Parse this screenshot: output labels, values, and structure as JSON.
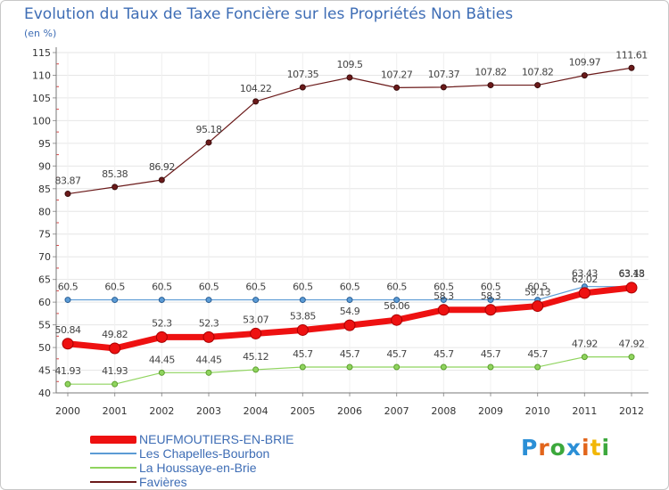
{
  "chart_data": {
    "type": "line",
    "title": "Evolution du Taux de Taxe Foncière sur les Propriétés Non Bâties",
    "ylabel": "(en %)",
    "xlabel": "",
    "ylim": [
      40,
      115
    ],
    "yticks": [
      40,
      45,
      50,
      55,
      60,
      65,
      70,
      75,
      80,
      85,
      90,
      95,
      100,
      105,
      110,
      115
    ],
    "x": [
      "2000",
      "2001",
      "2002",
      "2003",
      "2004",
      "2005",
      "2006",
      "2007",
      "2008",
      "2009",
      "2010",
      "2011",
      "2012"
    ],
    "series": [
      {
        "name": "Favières",
        "color": "#6b1a1a",
        "values": [
          83.87,
          85.38,
          86.92,
          95.18,
          104.22,
          107.35,
          109.5,
          107.27,
          107.37,
          107.82,
          107.82,
          109.97,
          111.61
        ],
        "labels": [
          "83.87",
          "85.38",
          "86.92",
          "95.18",
          "104.22",
          "107.35",
          "109.5",
          "107.27",
          "107.37",
          "107.82",
          "107.82",
          "109.97",
          "111.61"
        ]
      },
      {
        "name": "Les Chapelles-Bourbon",
        "color": "#5b9bd5",
        "values": [
          60.5,
          60.5,
          60.5,
          60.5,
          60.5,
          60.5,
          60.5,
          60.5,
          60.5,
          60.5,
          60.5,
          63.43,
          63.43
        ],
        "labels": [
          "60.5",
          "60.5",
          "60.5",
          "60.5",
          "60.5",
          "60.5",
          "60.5",
          "60.5",
          "60.5",
          "60.5",
          "60.5",
          "63.43",
          "63.43"
        ]
      },
      {
        "name": "La Houssaye-en-Brie",
        "color": "#8fd45e",
        "values": [
          41.93,
          41.93,
          44.45,
          44.45,
          45.12,
          45.7,
          45.7,
          45.7,
          45.7,
          45.7,
          45.7,
          47.92,
          47.92
        ],
        "labels": [
          "41.93",
          "41.93",
          "44.45",
          "44.45",
          "45.12",
          "45.7",
          "45.7",
          "45.7",
          "45.7",
          "45.7",
          "45.7",
          "47.92",
          "47.92"
        ]
      },
      {
        "name": "NEUFMOUTIERS-EN-BRIE",
        "color": "#ee1111",
        "values": [
          50.84,
          49.82,
          52.3,
          52.3,
          53.07,
          53.85,
          54.9,
          56.06,
          58.3,
          58.3,
          59.13,
          62.02,
          63.18
        ],
        "labels": [
          "50.84",
          "49.82",
          "52.3",
          "52.3",
          "53.07",
          "53.85",
          "54.9",
          "56.06",
          "58.3",
          "58.3",
          "59.13",
          "62.02",
          "63.18"
        ]
      }
    ],
    "legend": [
      {
        "name": "NEUFMOUTIERS-EN-BRIE",
        "color": "#ee1111"
      },
      {
        "name": "Les Chapelles-Bourbon",
        "color": "#5b9bd5"
      },
      {
        "name": "La Houssaye-en-Brie",
        "color": "#8fd45e"
      },
      {
        "name": "Favières",
        "color": "#6b1a1a"
      }
    ]
  },
  "logo": {
    "letters": [
      "P",
      "r",
      "o",
      "x",
      "i",
      "t",
      "i"
    ],
    "colors": [
      "#2b8fd6",
      "#e2651b",
      "#3ca83c",
      "#2b8fd6",
      "#e2651b",
      "#f2b705",
      "#3ca83c"
    ]
  }
}
